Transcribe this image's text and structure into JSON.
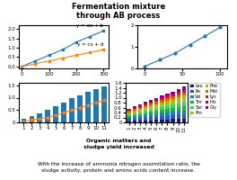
{
  "title": "Fermentation mixture\nthrough AB process",
  "annotations": [
    "Organic matters and\nsludge yield increased",
    "With the increase of ammonia nitrogen assimilation ratio, the\nsludge activity, protein and amino acids content increase."
  ],
  "chart_data": [
    {
      "type": "line",
      "x": [
        0,
        50,
        100,
        150,
        200,
        250,
        300
      ],
      "series": [
        {
          "name": "y = ax + b",
          "values": [
            0.0,
            0.3,
            0.6,
            0.9,
            1.3,
            1.6,
            1.9
          ],
          "marker": "s"
        },
        {
          "name": "y = cx + d",
          "values": [
            0.0,
            0.15,
            0.3,
            0.45,
            0.6,
            0.75,
            0.9
          ],
          "marker": "s"
        }
      ],
      "xlim": [
        -10,
        320
      ],
      "ylim": [
        -0.1,
        2.2
      ],
      "xticks": [
        0,
        100,
        200,
        300
      ],
      "yticks": [
        {
          "value": 0.0,
          "label": "0.0"
        },
        0.5,
        {
          "value": 1.0,
          "label": "1.0"
        },
        1.5,
        {
          "value": 2.0,
          "label": "2.0"
        }
      ]
    },
    {
      "type": "line",
      "x": [
        0,
        20,
        40,
        60,
        80,
        100
      ],
      "values": [
        0.1,
        0.4,
        0.7,
        1.1,
        1.5,
        1.9
      ],
      "marker": "o",
      "xlim": [
        -10,
        110
      ],
      "ylim": [
        0,
        2
      ],
      "xticks": [
        0,
        50,
        100
      ],
      "yticks": [
        0,
        1,
        2
      ]
    },
    {
      "type": "bar",
      "categories": [
        "1",
        "2",
        "3",
        "4",
        "5",
        "6",
        "7",
        "8",
        "9",
        "10",
        "11"
      ],
      "series": [
        {
          "type": "bar",
          "values": [
            0.15,
            0.25,
            0.35,
            0.5,
            0.65,
            0.8,
            1.0,
            1.1,
            1.25,
            1.35,
            1.45
          ]
        },
        {
          "type": "line",
          "marker": "o",
          "values": [
            0.05,
            0.1,
            0.15,
            0.2,
            0.3,
            0.4,
            0.5,
            0.6,
            0.7,
            0.8,
            0.9
          ]
        }
      ],
      "ylim": [
        0,
        1.6
      ],
      "yticks": [
        0,
        0.5,
        {
          "value": 1.0,
          "label": "1.0"
        },
        1.5
      ]
    },
    {
      "type": "bar",
      "stacked": true,
      "legend": "upper left",
      "categories": [
        "1",
        "2",
        "3",
        "4",
        "5",
        "6",
        "7",
        "8",
        "9",
        "10",
        "11"
      ],
      "series": [
        {
          "name": "Leu",
          "color": "#1a1a6e",
          "values": [
            0.05,
            0.06,
            0.07,
            0.08,
            0.09,
            0.1,
            0.11,
            0.12,
            0.13,
            0.14,
            0.15
          ]
        },
        {
          "name": "Ile",
          "color": "#3355aa",
          "values": [
            0.08,
            0.09,
            0.1,
            0.11,
            0.12,
            0.13,
            0.14,
            0.15,
            0.16,
            0.17,
            0.18
          ]
        },
        {
          "name": "Val",
          "color": "#2277cc",
          "values": [
            0.06,
            0.07,
            0.08,
            0.09,
            0.1,
            0.11,
            0.12,
            0.13,
            0.14,
            0.15,
            0.16
          ]
        },
        {
          "name": "Thr",
          "color": "#22aa44",
          "values": [
            0.07,
            0.08,
            0.09,
            0.1,
            0.11,
            0.12,
            0.13,
            0.14,
            0.15,
            0.16,
            0.17
          ]
        },
        {
          "name": "Ser",
          "color": "#44cc66",
          "values": [
            0.05,
            0.06,
            0.07,
            0.08,
            0.09,
            0.1,
            0.11,
            0.12,
            0.13,
            0.14,
            0.15
          ]
        },
        {
          "name": "Pro",
          "color": "#88cc44",
          "values": [
            0.04,
            0.05,
            0.06,
            0.07,
            0.08,
            0.09,
            0.1,
            0.11,
            0.12,
            0.13,
            0.14
          ]
        },
        {
          "name": "Phe",
          "color": "#ccaa00",
          "values": [
            0.06,
            0.07,
            0.07,
            0.08,
            0.09,
            0.09,
            0.1,
            0.11,
            0.11,
            0.12,
            0.13
          ]
        },
        {
          "name": "Met",
          "color": "#cc6600",
          "values": [
            0.05,
            0.06,
            0.06,
            0.07,
            0.07,
            0.08,
            0.09,
            0.09,
            0.1,
            0.11,
            0.11
          ]
        },
        {
          "name": "Lys",
          "color": "#cc2200",
          "values": [
            0.04,
            0.04,
            0.05,
            0.05,
            0.06,
            0.07,
            0.07,
            0.08,
            0.08,
            0.09,
            0.1
          ]
        },
        {
          "name": "His",
          "color": "#aa0055",
          "values": [
            0.03,
            0.04,
            0.04,
            0.05,
            0.05,
            0.06,
            0.06,
            0.07,
            0.07,
            0.08,
            0.09
          ]
        },
        {
          "name": "Gly",
          "color": "#880088",
          "values": [
            0.03,
            0.03,
            0.04,
            0.04,
            0.04,
            0.05,
            0.05,
            0.06,
            0.06,
            0.07,
            0.07
          ]
        }
      ],
      "ylim": [
        0,
        1.6
      ],
      "yticks": [
        0,
        0.2,
        0.4,
        0.6,
        0.8,
        {
          "value": 1.0,
          "label": "1.0"
        },
        1.2,
        1.4,
        1.6
      ]
    }
  ]
}
